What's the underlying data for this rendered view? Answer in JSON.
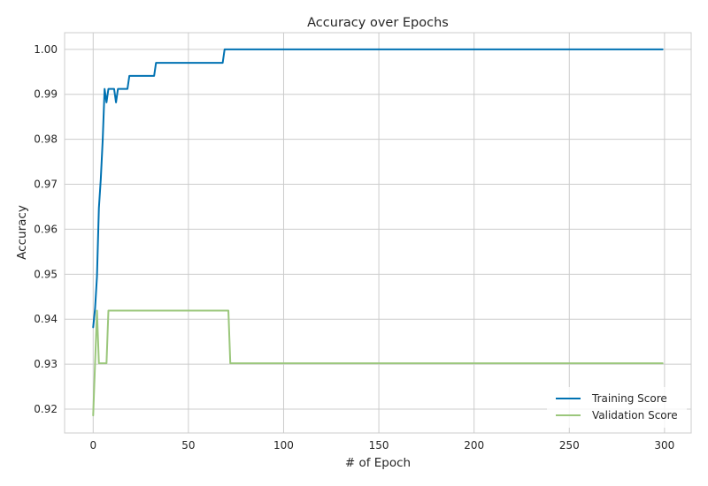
{
  "chart_data": {
    "type": "line",
    "title": "Accuracy over Epochs",
    "xlabel": "# of Epoch",
    "ylabel": "Accuracy",
    "xlim": [
      -15,
      314
    ],
    "ylim": [
      0.9147,
      1.0037
    ],
    "xticks": [
      0,
      50,
      100,
      150,
      200,
      250,
      300
    ],
    "yticks": [
      0.92,
      0.93,
      0.94,
      0.95,
      0.96,
      0.97,
      0.98,
      0.99,
      1.0
    ],
    "ytick_labels": [
      "0.92",
      "0.93",
      "0.94",
      "0.95",
      "0.96",
      "0.97",
      "0.98",
      "0.99",
      "1.00"
    ],
    "grid": true,
    "legend_position": "lower-right",
    "series": [
      {
        "name": "Training Score",
        "color": "#0072b2",
        "points": [
          [
            0,
            0.9382
          ],
          [
            1,
            0.9424
          ],
          [
            2,
            0.9495
          ],
          [
            3,
            0.9647
          ],
          [
            4,
            0.9712
          ],
          [
            5,
            0.9798
          ],
          [
            6,
            0.9912
          ],
          [
            7,
            0.9882
          ],
          [
            8,
            0.9912
          ],
          [
            11,
            0.9912
          ],
          [
            12,
            0.9882
          ],
          [
            13,
            0.9912
          ],
          [
            18,
            0.9912
          ],
          [
            19,
            0.9941
          ],
          [
            32,
            0.9941
          ],
          [
            33,
            0.997
          ],
          [
            68,
            0.997
          ],
          [
            69,
            1.0
          ],
          [
            299,
            1.0
          ]
        ]
      },
      {
        "name": "Validation Score",
        "color": "#9bc77c",
        "points": [
          [
            0,
            0.9186
          ],
          [
            1,
            0.9302
          ],
          [
            2,
            0.9419
          ],
          [
            3,
            0.9302
          ],
          [
            7,
            0.9302
          ],
          [
            8,
            0.9419
          ],
          [
            71,
            0.9419
          ],
          [
            72,
            0.9302
          ],
          [
            299,
            0.9302
          ]
        ]
      }
    ]
  }
}
